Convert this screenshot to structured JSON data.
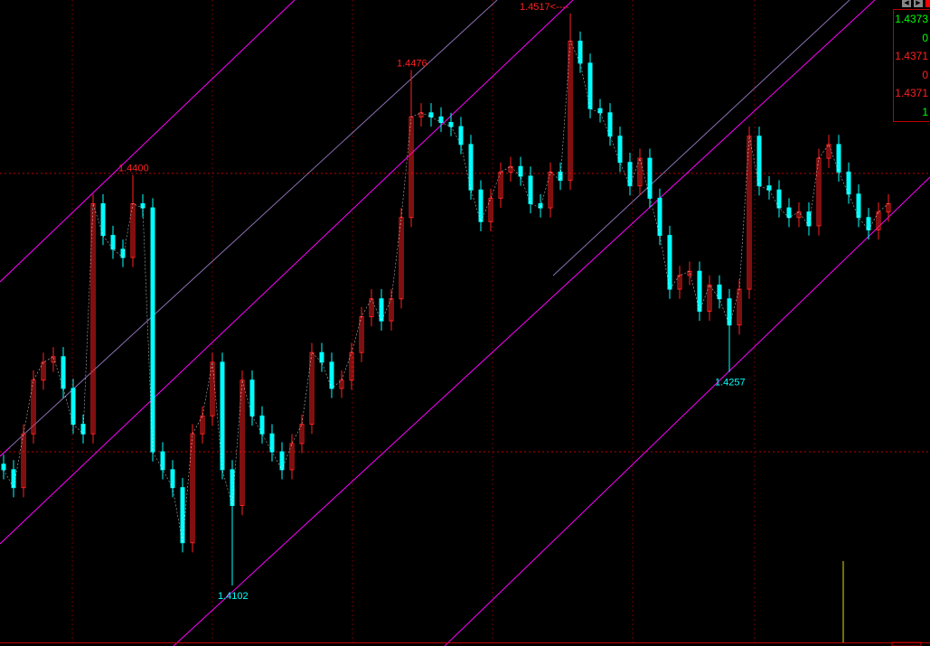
{
  "chart_data": {
    "type": "candlestick",
    "title": "",
    "ylim": [
      1.4102,
      1.4517
    ],
    "colors": {
      "up": "#ff2020",
      "down": "#00ffff",
      "channel": "#ff00ff",
      "grid": "#c00000",
      "volume": "#e0e000"
    },
    "grid_prices": [
      1.4401,
      1.4199
    ],
    "closes": [
      1.4186,
      1.4173,
      1.4212,
      1.4251,
      1.4264,
      1.4268,
      1.4245,
      1.4219,
      1.4212,
      1.4379,
      1.4356,
      1.4346,
      1.434,
      1.4379,
      1.4376,
      1.4199,
      1.4186,
      1.4173,
      1.4133,
      1.4212,
      1.4225,
      1.4264,
      1.4186,
      1.416,
      1.4251,
      1.4225,
      1.4212,
      1.4199,
      1.4186,
      1.4205,
      1.4219,
      1.4271,
      1.4264,
      1.4245,
      1.4251,
      1.4271,
      1.4297,
      1.431,
      1.4294,
      1.431,
      1.4369,
      1.4442,
      1.4445,
      1.4442,
      1.4438,
      1.4435,
      1.4422,
      1.4389,
      1.4366,
      1.4383,
      1.4402,
      1.4406,
      1.4399,
      1.4379,
      1.4376,
      1.4402,
      1.4396,
      1.4497,
      1.4481,
      1.4448,
      1.4445,
      1.4428,
      1.4409,
      1.4392,
      1.4412,
      1.4383,
      1.4356,
      1.4317,
      1.4327,
      1.433,
      1.4301,
      1.432,
      1.431,
      1.4291,
      1.4317,
      1.4428,
      1.4392,
      1.4389,
      1.4376,
      1.4369,
      1.4373,
      1.4363,
      1.4412,
      1.4422,
      1.4402,
      1.4386,
      1.4369,
      1.436,
      1.4373,
      1.4379
    ],
    "annotations": [
      {
        "index": 13,
        "kind": "high",
        "text": "1.4400",
        "value": 1.44,
        "color": "#ff2020"
      },
      {
        "index": 41,
        "kind": "high",
        "text": "1.4476",
        "value": 1.4476,
        "color": "#ff2020"
      },
      {
        "index": 57,
        "kind": "high",
        "text": "1.4517<----",
        "value": 1.4517,
        "color": "#ff2020"
      },
      {
        "index": 23,
        "kind": "low",
        "text": "1.4102",
        "value": 1.4102,
        "color": "#00ffff"
      },
      {
        "index": 73,
        "kind": "low",
        "text": "1.4257",
        "value": 1.4257,
        "color": "#00ffff"
      }
    ]
  },
  "panel": {
    "values": [
      {
        "text": "1.4373",
        "color": "green"
      },
      {
        "text": "0",
        "color": "green"
      },
      {
        "text": "1.4371",
        "color": "red"
      },
      {
        "text": "0",
        "color": "red"
      },
      {
        "text": "1.4371",
        "color": "red"
      },
      {
        "text": "1",
        "color": "green"
      }
    ]
  },
  "nav": {
    "prev_icon": "◀",
    "next_icon": "▶"
  }
}
